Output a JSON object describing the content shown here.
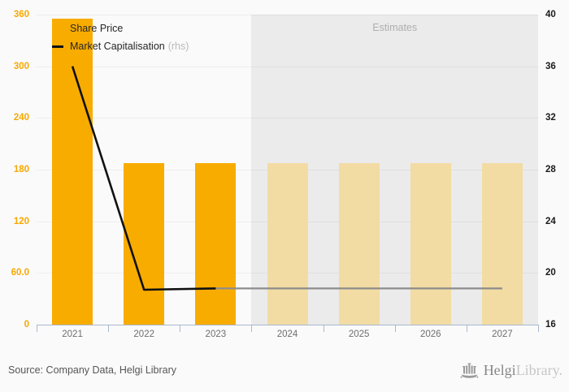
{
  "footer": {
    "source": "Source: Company Data, Helgi Library",
    "logo": {
      "primary": "Helgi",
      "secondary": "Library."
    }
  },
  "chart_data": {
    "type": "bar",
    "title": "",
    "categories": [
      "2021",
      "2022",
      "2023",
      "2024",
      "2025",
      "2026",
      "2027"
    ],
    "series": [
      {
        "name": "Share Price",
        "type": "bar",
        "axis": "left",
        "values": [
          355,
          188,
          188,
          188,
          188,
          188,
          188
        ],
        "actual_count": 3
      },
      {
        "name": "Market Capitalisation",
        "legend_suffix": "(rhs)",
        "type": "line",
        "axis": "right",
        "values": [
          36.0,
          18.7,
          18.8,
          18.8,
          18.8,
          18.8,
          18.8
        ],
        "actual_count": 3
      }
    ],
    "left_axis": {
      "min": 0,
      "max": 360,
      "tick_labels": [
        "360",
        "300",
        "240",
        "180",
        "120",
        "60.0",
        "0"
      ]
    },
    "right_axis": {
      "min": 16,
      "max": 40,
      "tick_labels": [
        "40",
        "36",
        "32",
        "28",
        "24",
        "20",
        "16"
      ]
    },
    "estimates_label": "Estimates",
    "estimates_start_category": "2024",
    "legend_position": "top-left",
    "grid": true,
    "colors": {
      "bar_actual": "#f8ac00",
      "bar_estimate": "#f2dca4",
      "line_actual": "#111111",
      "line_estimate": "#8c8c8c",
      "estimates_bg": "#ebebeb",
      "axis_line": "#a9b8ce",
      "left_tick_text": "#f7a800",
      "right_tick_text": "#1a1a1a",
      "category_text": "#6e6e6e",
      "estimates_text": "#aeaeae"
    }
  }
}
